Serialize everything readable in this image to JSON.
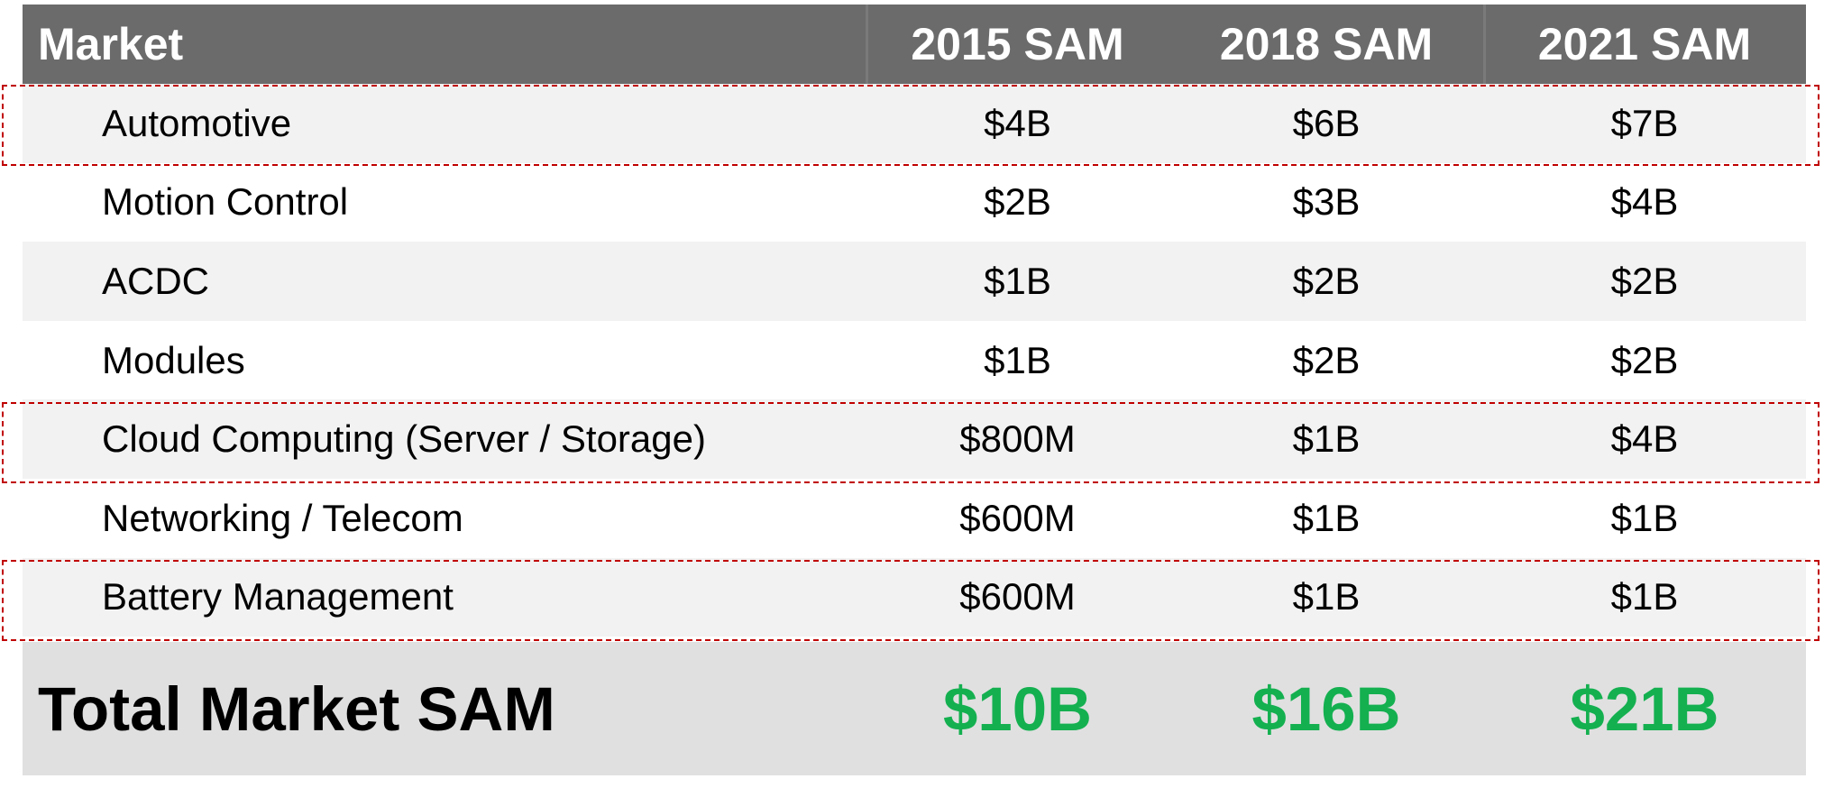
{
  "header": {
    "market": "Market",
    "y1": "2015 SAM",
    "y2": "2018 SAM",
    "y3": "2021 SAM"
  },
  "rows": [
    {
      "market": "Automotive",
      "y1": "$4B",
      "y2": "$6B",
      "y3": "$7B",
      "highlighted": true
    },
    {
      "market": "Motion Control",
      "y1": "$2B",
      "y2": "$3B",
      "y3": "$4B",
      "highlighted": false
    },
    {
      "market": "ACDC",
      "y1": "$1B",
      "y2": "$2B",
      "y3": "$2B",
      "highlighted": false
    },
    {
      "market": "Modules",
      "y1": "$1B",
      "y2": "$2B",
      "y3": "$2B",
      "highlighted": false
    },
    {
      "market": "Cloud Computing (Server / Storage)",
      "y1": "$800M",
      "y2": "$1B",
      "y3": "$4B",
      "highlighted": true
    },
    {
      "market": "Networking / Telecom",
      "y1": "$600M",
      "y2": "$1B",
      "y3": "$1B",
      "highlighted": false
    },
    {
      "market": "Battery Management",
      "y1": "$600M",
      "y2": "$1B",
      "y3": "$1B",
      "highlighted": true
    }
  ],
  "total": {
    "label": "Total Market SAM",
    "y1": "$10B",
    "y2": "$16B",
    "y3": "$21B"
  },
  "colors": {
    "header_bg": "#6b6b6b",
    "shaded_row": "#f2f2f2",
    "total_bg": "#e0e0e0",
    "total_value": "#14b050",
    "highlight_border": "#c00000"
  }
}
